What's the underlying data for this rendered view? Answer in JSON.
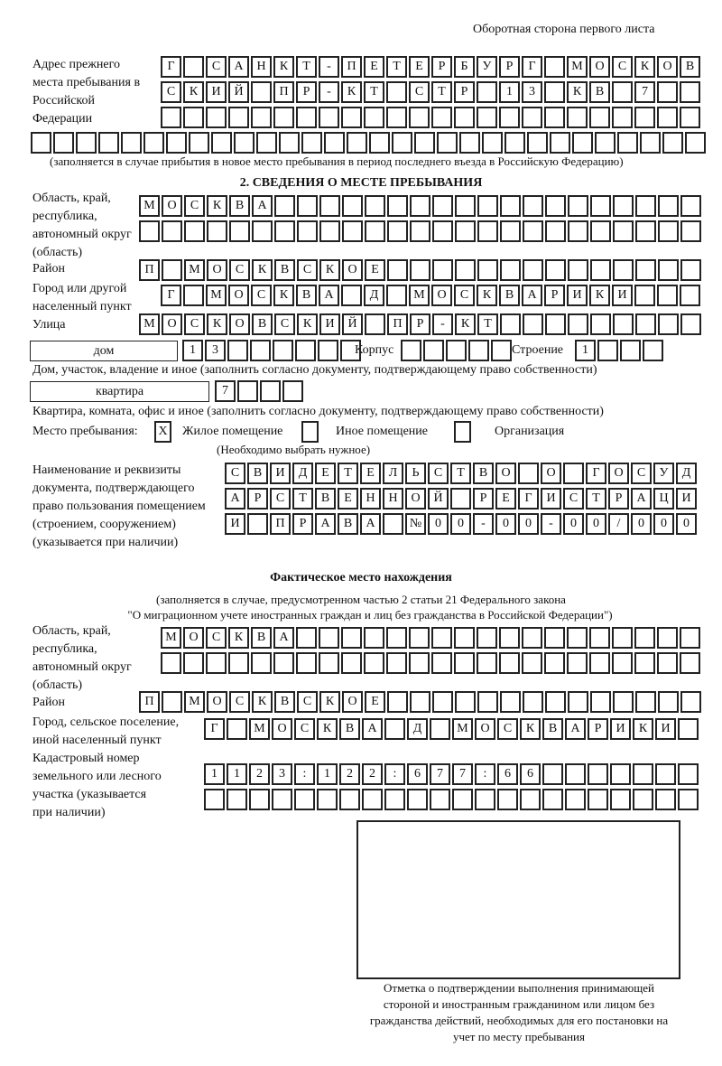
{
  "header": "Оборотная сторона первого листа",
  "previous_address": {
    "label": "Адрес прежнего места пребывания в Российской Федерации",
    "rows": [
      "Г САНКТ-ПЕТЕРБУРГ МОСКОВ",
      "СКИЙ ПР-КТ СТР 13 КВ 7  ",
      "                        ",
      "                              "
    ],
    "note": "(заполняется в случае прибытия в новое место пребывания в период последнего въезда в Российскую Федерацию)"
  },
  "section2": {
    "title": "2. СВЕДЕНИЯ О МЕСТЕ ПРЕБЫВАНИЯ",
    "region_label": "Область, край, республика, автономный округ (область)",
    "region_rows": [
      "МОСКВА                   ",
      "                         "
    ],
    "district_label": "Район",
    "district_row": "П МОСКВСКОЕ              ",
    "city_label": "Город или другой населенный пункт",
    "city_row": "Г МОСКВА Д МОСКВАРИКИ   ",
    "street_label": "Улица",
    "street_row": "МОСКОВСКИЙ ПР-КТ         ",
    "house_type": "дом",
    "house_row": "13      ",
    "korpus_label": "Корпус",
    "korpus_row": "     ",
    "building_label": "Строение",
    "building_row": "1   ",
    "house_note": "Дом, участок, владение и иное (заполнить согласно документу, подтверждающему право собственности)",
    "apt_type": "квартира",
    "apt_row": "7   ",
    "apt_note": "Квартира, комната, офис и иное (заполнить согласно документу, подтверждающему право собственности)",
    "stay_label": "Место пребывания:",
    "options": [
      {
        "label": "Жилое помещение",
        "mark": "X"
      },
      {
        "label": "Иное помещение",
        "mark": ""
      },
      {
        "label": "Организация",
        "mark": ""
      }
    ],
    "choose_note": "(Необходимо выбрать нужное)",
    "doc_label": "Наименование и реквизиты документа, подтверждающего право пользования помещением (строением, сооружением) (указывается при наличии)",
    "doc_rows": [
      "СВИДЕТЕЛЬСТВО О ГОСУД",
      "АРСТВЕННОЙ РЕГИСТРАЦИ",
      "И ПРАВА №00-00-00/000"
    ]
  },
  "actual": {
    "title": "Фактическое место нахождения",
    "note1": "(заполняется в случае, предусмотренном частью 2 статьи 21 Федерального закона",
    "note2": "\"О миграционном учете иностранных граждан и лиц без гражданства в Российской Федерации\")",
    "region_label": "Область, край, республика, автономный округ (область)",
    "region_rows": [
      "МОСКВА                  ",
      "                        "
    ],
    "district_label": "Район",
    "district_row": "П МОСКВСКОЕ              ",
    "city_label": "Город, сельское поселение, иной населенный пункт",
    "city_row": "Г МОСКВА Д МОСКВАРИКИ ",
    "cadastre_label": "Кадастровый номер земельного или лесного участка (указывается при наличии)",
    "cadastre_rows": [
      "1123:122:677:66       ",
      "                      "
    ]
  },
  "stamp_caption": "Отметка о подтверждении выполнения принимающей стороной и иностранным гражданином или лицом без гражданства действий, необходимых для его постановки на учет по месту пребывания"
}
